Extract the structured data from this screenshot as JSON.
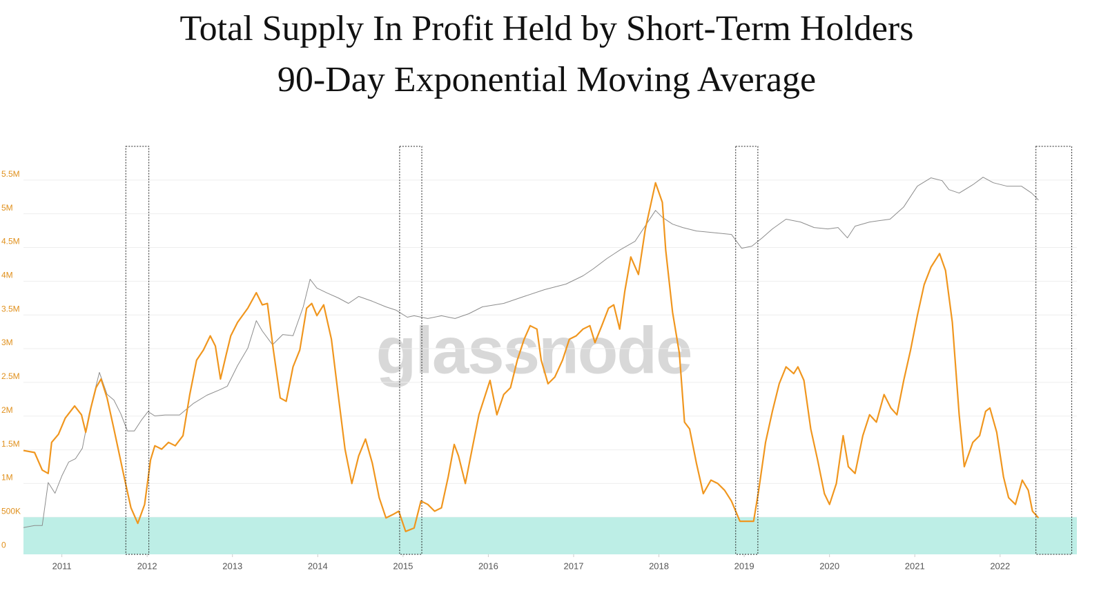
{
  "chart_data": {
    "type": "line",
    "title": "Total Supply In Profit Held by Short-Term Holders",
    "subtitle": "90-Day Exponential Moving Average",
    "watermark": "glassnode",
    "xlim": [
      2010.55,
      2022.9
    ],
    "xticks": [
      2011,
      2012,
      2013,
      2014,
      2015,
      2016,
      2017,
      2018,
      2019,
      2020,
      2021,
      2022
    ],
    "ylim": [
      -50000,
      6000000
    ],
    "yticks": [
      0,
      {
        "value": 500000,
        "label": "500K"
      },
      {
        "value": 1000000,
        "label": "1M"
      },
      {
        "value": 1500000,
        "label": "1.5M"
      },
      {
        "value": 2000000,
        "label": "2M"
      },
      {
        "value": 2500000,
        "label": "2.5M"
      },
      {
        "value": 3000000,
        "label": "3M"
      },
      {
        "value": 3500000,
        "label": "3.5M"
      },
      {
        "value": 4000000,
        "label": "4M"
      },
      {
        "value": 4500000,
        "label": "4.5M"
      },
      {
        "value": 5000000,
        "label": "5M"
      },
      {
        "value": 5500000,
        "label": "5.5M"
      }
    ],
    "y2lim": [
      0.025,
      200000
    ],
    "y2_log": true,
    "grid": true,
    "shaded_below": {
      "value": 500000,
      "color": "#bdeee6"
    },
    "highlight_boxes": [
      [
        2011.75,
        2012.02
      ],
      [
        2014.96,
        2015.22
      ],
      [
        2018.9,
        2019.16
      ],
      [
        2022.42,
        2022.84
      ]
    ],
    "series": [
      {
        "color": "#f0961e",
        "axis": "y",
        "x": [
          2010.55,
          2010.68,
          2010.77,
          2010.84,
          2010.88,
          2010.96,
          2011.04,
          2011.15,
          2011.23,
          2011.28,
          2011.34,
          2011.4,
          2011.46,
          2011.53,
          2011.61,
          2011.73,
          2011.81,
          2011.89,
          2011.97,
          2012.04,
          2012.09,
          2012.17,
          2012.25,
          2012.33,
          2012.42,
          2012.5,
          2012.58,
          2012.66,
          2012.74,
          2012.8,
          2012.86,
          2012.93,
          2012.98,
          2013.06,
          2013.18,
          2013.28,
          2013.35,
          2013.41,
          2013.48,
          2013.56,
          2013.63,
          2013.71,
          2013.79,
          2013.87,
          2013.93,
          2013.99,
          2014.07,
          2014.16,
          2014.24,
          2014.32,
          2014.4,
          2014.48,
          2014.56,
          2014.64,
          2014.72,
          2014.8,
          2014.88,
          2014.95,
          2015.03,
          2015.13,
          2015.21,
          2015.29,
          2015.37,
          2015.45,
          2015.53,
          2015.6,
          2015.65,
          2015.73,
          2015.81,
          2015.89,
          2016.02,
          2016.1,
          2016.18,
          2016.26,
          2016.34,
          2016.42,
          2016.49,
          2016.57,
          2016.62,
          2016.7,
          2016.78,
          2016.87,
          2016.95,
          2017.03,
          2017.11,
          2017.19,
          2017.25,
          2017.33,
          2017.41,
          2017.47,
          2017.54,
          2017.6,
          2017.67,
          2017.76,
          2017.84,
          2017.96,
          2018.04,
          2018.08,
          2018.16,
          2018.24,
          2018.3,
          2018.36,
          2018.44,
          2018.52,
          2018.61,
          2018.69,
          2018.77,
          2018.85,
          2018.95,
          2019.03,
          2019.11,
          2019.17,
          2019.25,
          2019.33,
          2019.41,
          2019.49,
          2019.58,
          2019.63,
          2019.7,
          2019.78,
          2019.86,
          2019.94,
          2020.0,
          2020.08,
          2020.16,
          2020.22,
          2020.3,
          2020.39,
          2020.47,
          2020.55,
          2020.64,
          2020.72,
          2020.79,
          2020.87,
          2020.95,
          2021.03,
          2021.11,
          2021.19,
          2021.29,
          2021.36,
          2021.44,
          2021.52,
          2021.58,
          2021.68,
          2021.76,
          2021.83,
          2021.88,
          2021.96,
          2022.04,
          2022.1,
          2022.18,
          2022.26,
          2022.33,
          2022.38,
          2022.45
        ],
        "values": [
          1490000,
          1460000,
          1200000,
          1150000,
          1610000,
          1730000,
          1970000,
          2150000,
          2020000,
          1760000,
          2120000,
          2420000,
          2550000,
          2270000,
          1810000,
          1100000,
          640000,
          410000,
          690000,
          1350000,
          1560000,
          1510000,
          1610000,
          1560000,
          1710000,
          2320000,
          2830000,
          2980000,
          3190000,
          3040000,
          2550000,
          2930000,
          3190000,
          3390000,
          3600000,
          3830000,
          3650000,
          3670000,
          2980000,
          2270000,
          2220000,
          2730000,
          2980000,
          3600000,
          3670000,
          3490000,
          3650000,
          3140000,
          2320000,
          1510000,
          1000000,
          1410000,
          1660000,
          1300000,
          790000,
          490000,
          540000,
          590000,
          290000,
          340000,
          740000,
          690000,
          590000,
          640000,
          1100000,
          1580000,
          1410000,
          1000000,
          1510000,
          2020000,
          2530000,
          2020000,
          2320000,
          2420000,
          2830000,
          3140000,
          3340000,
          3290000,
          2830000,
          2480000,
          2580000,
          2830000,
          3140000,
          3190000,
          3290000,
          3340000,
          3090000,
          3340000,
          3600000,
          3650000,
          3290000,
          3850000,
          4360000,
          4100000,
          4770000,
          5460000,
          5170000,
          4460000,
          3540000,
          2930000,
          1910000,
          1810000,
          1300000,
          850000,
          1050000,
          1000000,
          900000,
          740000,
          440000,
          440000,
          440000,
          900000,
          1610000,
          2070000,
          2480000,
          2730000,
          2630000,
          2730000,
          2530000,
          1810000,
          1350000,
          850000,
          690000,
          1000000,
          1710000,
          1250000,
          1150000,
          1710000,
          2020000,
          1910000,
          2320000,
          2120000,
          2020000,
          2530000,
          2980000,
          3490000,
          3950000,
          4210000,
          4410000,
          4160000,
          3390000,
          2020000,
          1250000,
          1610000,
          1710000,
          2070000,
          2120000,
          1760000,
          1100000,
          790000,
          690000,
          1050000,
          900000,
          590000,
          490000
        ]
      },
      {
        "color": "#8c8c8c",
        "axis": "y2",
        "x": [
          2010.55,
          2010.68,
          2010.77,
          2010.84,
          2010.92,
          2011.0,
          2011.08,
          2011.16,
          2011.24,
          2011.32,
          2011.4,
          2011.44,
          2011.53,
          2011.61,
          2011.69,
          2011.77,
          2011.85,
          2011.93,
          2012.01,
          2012.09,
          2012.21,
          2012.38,
          2012.54,
          2012.7,
          2012.86,
          2012.94,
          2013.06,
          2013.18,
          2013.28,
          2013.35,
          2013.47,
          2013.59,
          2013.71,
          2013.83,
          2013.91,
          2013.99,
          2014.11,
          2014.24,
          2014.36,
          2014.48,
          2014.64,
          2014.8,
          2014.92,
          2015.05,
          2015.13,
          2015.29,
          2015.45,
          2015.61,
          2015.77,
          2015.93,
          2016.18,
          2016.42,
          2016.66,
          2016.91,
          2017.11,
          2017.23,
          2017.39,
          2017.55,
          2017.72,
          2017.88,
          2017.96,
          2018.04,
          2018.16,
          2018.28,
          2018.44,
          2018.69,
          2018.85,
          2018.97,
          2019.09,
          2019.21,
          2019.33,
          2019.49,
          2019.66,
          2019.82,
          2019.98,
          2020.1,
          2020.21,
          2020.3,
          2020.47,
          2020.71,
          2020.87,
          2021.03,
          2021.19,
          2021.32,
          2021.4,
          2021.52,
          2021.68,
          2021.8,
          2021.92,
          2022.08,
          2022.25,
          2022.37,
          2022.45
        ],
        "values": [
          0.071,
          0.077,
          0.077,
          0.41,
          0.27,
          0.53,
          0.91,
          1.04,
          1.56,
          6.0,
          17.5,
          30,
          12.7,
          10.2,
          6.0,
          3.06,
          3.06,
          4.6,
          6.5,
          5.5,
          5.7,
          5.7,
          8.9,
          12.3,
          15.4,
          17.5,
          39,
          77,
          225,
          150,
          88,
          131,
          125,
          385,
          1130,
          800,
          660,
          546,
          440,
          577,
          478,
          385,
          337,
          257,
          272,
          244,
          272,
          244,
          294,
          385,
          440,
          577,
          754,
          934,
          1290,
          1690,
          2530,
          3580,
          4940,
          11000,
          16500,
          12600,
          9660,
          8460,
          7400,
          6830,
          6470,
          3780,
          4090,
          5650,
          8010,
          11700,
          10500,
          8460,
          8010,
          8460,
          5650,
          8930,
          10500,
          11700,
          18900,
          42400,
          58600,
          52600,
          37000,
          32400,
          44800,
          60100,
          48500,
          42400,
          42400,
          32400,
          24700
        ]
      }
    ]
  }
}
